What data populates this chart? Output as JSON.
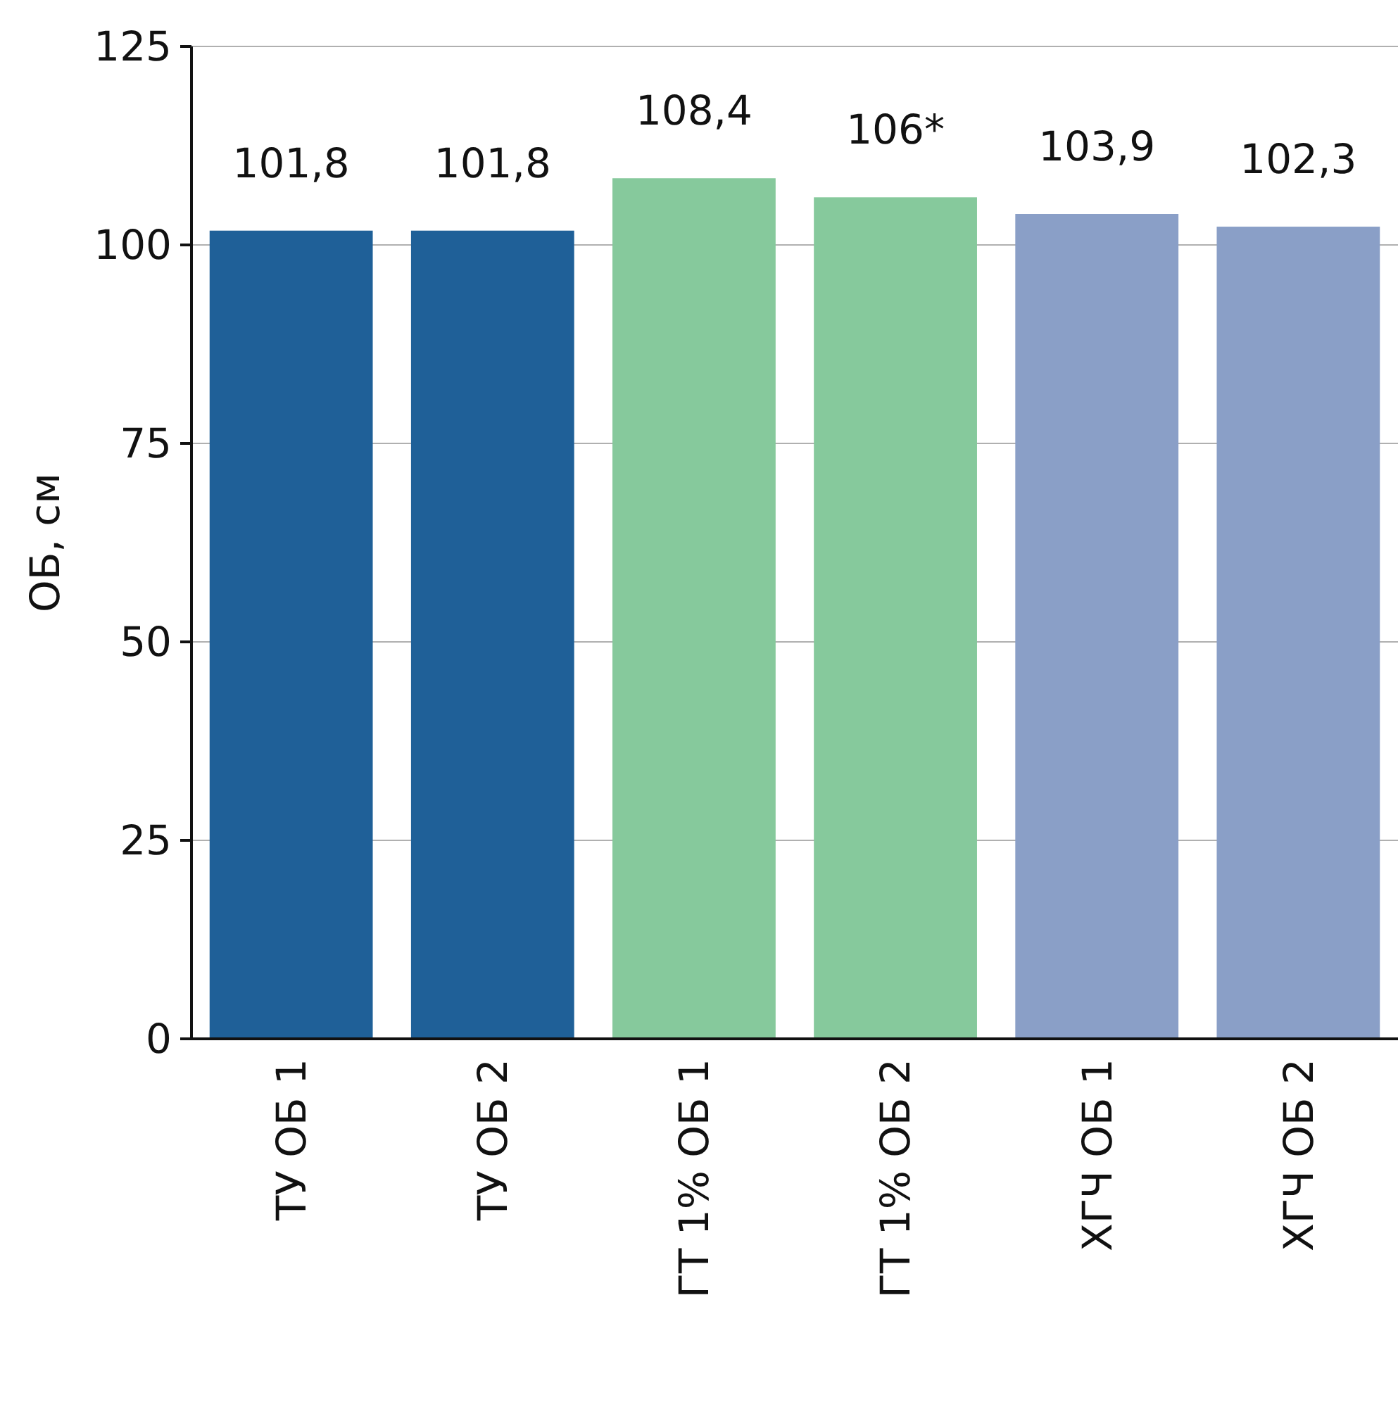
{
  "chart_data": {
    "type": "bar",
    "ylabel": "ОБ, см",
    "categories": [
      "ТУ ОБ 1",
      "ТУ ОБ 2",
      "ГТ 1% ОБ 1",
      "ГТ 1% ОБ 2",
      "ХГЧ ОБ 1",
      "ХГЧ ОБ 2"
    ],
    "values": [
      101.8,
      101.8,
      108.4,
      106,
      103.9,
      102.3
    ],
    "value_labels": [
      "101,8",
      "101,8",
      "108,4",
      "106*",
      "103,9",
      "102,3"
    ],
    "colors": [
      "#1f6098",
      "#1f6098",
      "#86c99c",
      "#86c99c",
      "#8a9fc7",
      "#8a9fc7"
    ],
    "ylim": [
      0,
      125
    ],
    "yticks": [
      0,
      25,
      50,
      75,
      100,
      125
    ],
    "grid": "y"
  }
}
